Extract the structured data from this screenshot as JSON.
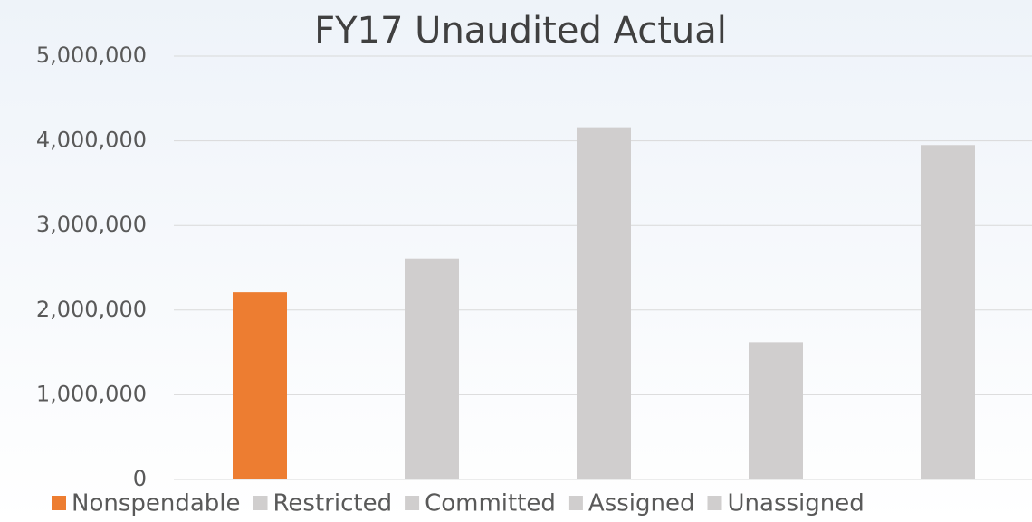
{
  "chart_data": {
    "type": "bar",
    "title": "FY17 Unaudited Actual",
    "categories": [
      "Nonspendable",
      "Restricted",
      "Committed",
      "Assigned",
      "Unassigned"
    ],
    "values": [
      2210000,
      2610000,
      4160000,
      1620000,
      3950000
    ],
    "colors": [
      "#ed7d31",
      "#d0cece",
      "#d0cece",
      "#d0cece",
      "#d0cece"
    ],
    "ylim": [
      0,
      5000000
    ],
    "yticks": [
      0,
      {
        "value": 1000000,
        "label": "1,000,000"
      },
      {
        "value": 2000000,
        "label": "2,000,000"
      },
      {
        "value": 3000000,
        "label": "3,000,000"
      },
      {
        "value": 4000000,
        "label": "4,000,000"
      },
      {
        "value": 5000000,
        "label": "5,000,000"
      }
    ],
    "grid": true,
    "legend": "bottom"
  }
}
